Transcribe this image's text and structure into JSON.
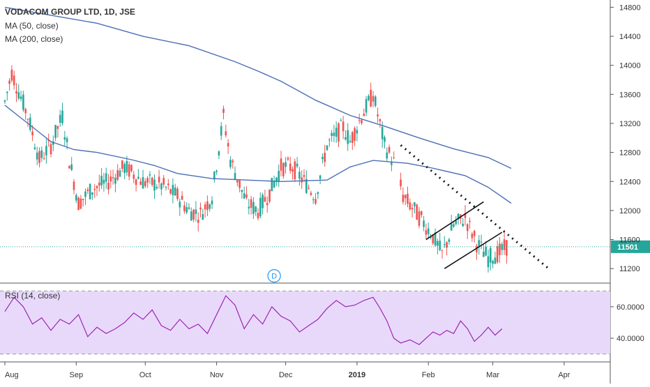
{
  "colors": {
    "up": "#26a69a",
    "down": "#ef5350",
    "ma": "#4a6fb5",
    "rsi_line": "#9c27b0",
    "rsi_band": "#e8d9fb",
    "last_price_line": "#26a69a",
    "axis_text": "#333333",
    "marker": "#2196f3"
  },
  "chart_data": [
    {
      "type": "candlestick",
      "title": "VODACOM GROUP LTD, 1D, JSE",
      "indicators": [
        "MA (50, close)",
        "MA (200, close)"
      ],
      "ylim": [
        11000,
        14900
      ],
      "yticks": [
        11200,
        11600,
        12000,
        12400,
        12800,
        13200,
        13600,
        14000,
        14400,
        14800
      ],
      "ytick_labels": [
        "11200",
        "11600",
        "12000",
        "12400",
        "12800",
        "13200",
        "13600",
        "14000",
        "14400",
        "14800"
      ],
      "last_price": 11501,
      "last_price_label": "11501",
      "xticks": [
        {
          "label": "Aug",
          "day": 0
        },
        {
          "label": "Sep",
          "day": 31
        },
        {
          "label": "Oct",
          "day": 61
        },
        {
          "label": "Nov",
          "day": 92
        },
        {
          "label": "Dec",
          "day": 122
        },
        {
          "label": "2019",
          "day": 153
        },
        {
          "label": "Feb",
          "day": 184
        },
        {
          "label": "Mar",
          "day": 212
        },
        {
          "label": "Apr",
          "day": 243
        }
      ],
      "ma200": [
        [
          0,
          14800
        ],
        [
          20,
          14690
        ],
        [
          40,
          14580
        ],
        [
          60,
          14400
        ],
        [
          80,
          14270
        ],
        [
          100,
          14050
        ],
        [
          110,
          13920
        ],
        [
          120,
          13780
        ],
        [
          135,
          13520
        ],
        [
          150,
          13310
        ],
        [
          165,
          13160
        ],
        [
          180,
          13000
        ],
        [
          195,
          12850
        ],
        [
          210,
          12730
        ],
        [
          220,
          12580
        ]
      ],
      "ma50": [
        [
          0,
          13450
        ],
        [
          10,
          13200
        ],
        [
          20,
          12950
        ],
        [
          30,
          12840
        ],
        [
          40,
          12800
        ],
        [
          55,
          12700
        ],
        [
          65,
          12620
        ],
        [
          75,
          12510
        ],
        [
          90,
          12440
        ],
        [
          105,
          12420
        ],
        [
          120,
          12400
        ],
        [
          140,
          12420
        ],
        [
          150,
          12600
        ],
        [
          160,
          12690
        ],
        [
          175,
          12650
        ],
        [
          185,
          12590
        ],
        [
          200,
          12480
        ],
        [
          210,
          12320
        ],
        [
          220,
          12100
        ]
      ],
      "marker_label": "D",
      "marker_day": 117,
      "marker_price": 11100
    },
    {
      "type": "line",
      "title": "RSI (14, close)",
      "ylim": [
        25,
        75
      ],
      "yticks": [
        40,
        60
      ],
      "ytick_labels": [
        "40.0000",
        "60.0000"
      ],
      "band": [
        30,
        70
      ],
      "values": [
        [
          0,
          57
        ],
        [
          4,
          66
        ],
        [
          8,
          60
        ],
        [
          12,
          49
        ],
        [
          16,
          53
        ],
        [
          20,
          45
        ],
        [
          24,
          52
        ],
        [
          28,
          49
        ],
        [
          32,
          55
        ],
        [
          36,
          41
        ],
        [
          40,
          47
        ],
        [
          44,
          43
        ],
        [
          48,
          46
        ],
        [
          52,
          50
        ],
        [
          56,
          56
        ],
        [
          60,
          52
        ],
        [
          64,
          58
        ],
        [
          68,
          48
        ],
        [
          72,
          45
        ],
        [
          76,
          52
        ],
        [
          80,
          46
        ],
        [
          84,
          49
        ],
        [
          88,
          43
        ],
        [
          92,
          55
        ],
        [
          96,
          67
        ],
        [
          100,
          61
        ],
        [
          104,
          46
        ],
        [
          108,
          55
        ],
        [
          112,
          49
        ],
        [
          116,
          60
        ],
        [
          120,
          54
        ],
        [
          124,
          51
        ],
        [
          128,
          44
        ],
        [
          132,
          48
        ],
        [
          136,
          52
        ],
        [
          140,
          59
        ],
        [
          144,
          64
        ],
        [
          148,
          60
        ],
        [
          152,
          61
        ],
        [
          156,
          64
        ],
        [
          160,
          66
        ],
        [
          163,
          59
        ],
        [
          166,
          51
        ],
        [
          169,
          40
        ],
        [
          172,
          37
        ],
        [
          176,
          39
        ],
        [
          180,
          36
        ],
        [
          183,
          40
        ],
        [
          186,
          44
        ],
        [
          189,
          42
        ],
        [
          192,
          45
        ],
        [
          195,
          43
        ],
        [
          198,
          51
        ],
        [
          201,
          46
        ],
        [
          204,
          38
        ],
        [
          207,
          42
        ],
        [
          210,
          47
        ],
        [
          213,
          42
        ],
        [
          216,
          46
        ]
      ]
    }
  ]
}
